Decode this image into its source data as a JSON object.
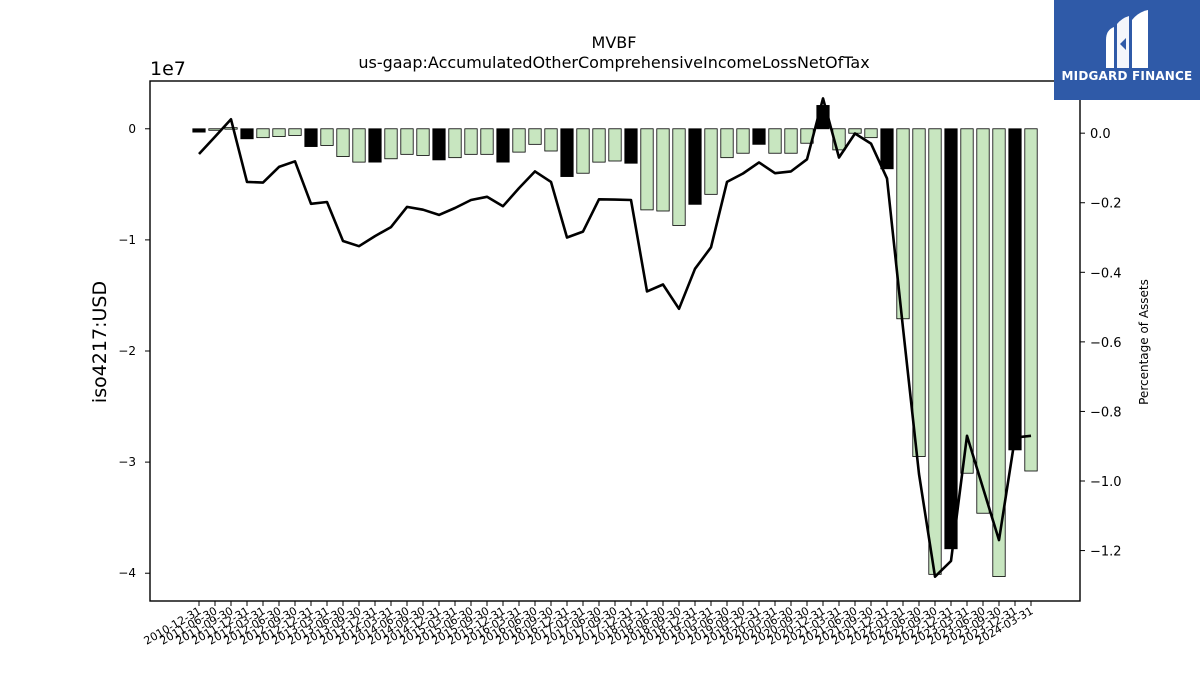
{
  "logo": {
    "text": "MIDGARD FINANCE",
    "background": "#2f5aa8"
  },
  "chart_data": {
    "type": "bar",
    "title": "MVBF",
    "subtitle": "us-gaap:AccumulatedOtherComprehensiveIncomeLossNetOfTax",
    "ylabel": "iso4217:USD",
    "y_offset_label": "1e7",
    "y2label": "Percentage of Assets",
    "ylim": [
      -42500000.0,
      4300000.0
    ],
    "y2lim": [
      -1.345,
      0.15
    ],
    "yticks": [
      0,
      -1,
      -2,
      -3,
      -4
    ],
    "y2ticks": [
      "0.0",
      "−0.2",
      "−0.4",
      "−0.6",
      "−0.8",
      "−1.0",
      "−1.2"
    ],
    "bar_colors": {
      "annual": "#000000",
      "quarter": "#c8e6c0"
    },
    "categories": [
      "2010-12-31",
      "2011-06-30",
      "2011-09-30",
      "2011-12-31",
      "2012-03-31",
      "2012-06-30",
      "2012-09-30",
      "2012-12-31",
      "2013-03-31",
      "2013-06-30",
      "2013-09-30",
      "2013-12-31",
      "2014-03-31",
      "2014-06-30",
      "2014-09-30",
      "2014-12-31",
      "2015-03-31",
      "2015-06-30",
      "2015-09-30",
      "2015-12-31",
      "2016-03-31",
      "2016-06-30",
      "2016-09-30",
      "2016-12-31",
      "2017-03-31",
      "2017-06-30",
      "2017-09-30",
      "2017-12-31",
      "2018-03-31",
      "2018-06-30",
      "2018-09-30",
      "2018-12-31",
      "2019-03-31",
      "2019-06-30",
      "2019-09-30",
      "2019-12-31",
      "2020-03-31",
      "2020-06-30",
      "2020-09-30",
      "2020-12-31",
      "2021-03-31",
      "2021-06-30",
      "2021-09-30",
      "2021-12-31",
      "2022-03-31",
      "2022-06-30",
      "2022-09-30",
      "2022-12-31",
      "2023-03-31",
      "2023-06-30",
      "2023-09-30",
      "2023-12-31",
      "2024-03-31"
    ],
    "bars": [
      -300000,
      -80000,
      100000,
      -900000,
      -800000,
      -700000,
      -600000,
      -1600000,
      -1500000,
      -2500000,
      -3000000,
      -3000000,
      -2700000,
      -2300000,
      -2400000,
      -2800000,
      -2600000,
      -2300000,
      -2300000,
      -3000000,
      -2100000,
      -1400000,
      -2000000,
      -4300000,
      -4000000,
      -3000000,
      -2900000,
      -3100000,
      -7300000,
      -7400000,
      -8700000,
      -6800000,
      -5900000,
      -2600000,
      -2200000,
      -1400000,
      -2200000,
      -2200000,
      -1300000,
      2100000,
      -1900000,
      -400000,
      -800000,
      -3600000,
      -17100000,
      -29500000,
      -40100000,
      -37800000,
      -31000000,
      -34600000,
      -40300000,
      -28900000,
      -30800000
    ],
    "bar_is_annual": [
      true,
      false,
      false,
      true,
      false,
      false,
      false,
      true,
      false,
      false,
      false,
      true,
      false,
      false,
      false,
      true,
      false,
      false,
      false,
      true,
      false,
      false,
      false,
      true,
      false,
      false,
      false,
      true,
      false,
      false,
      false,
      true,
      false,
      false,
      false,
      true,
      false,
      false,
      false,
      true,
      false,
      false,
      false,
      true,
      false,
      false,
      false,
      true,
      false,
      false,
      false,
      true,
      false
    ],
    "pct_assets": [
      -0.06,
      -0.01,
      0.04,
      -0.14,
      -0.142,
      -0.097,
      -0.081,
      -0.203,
      -0.198,
      -0.31,
      -0.325,
      -0.296,
      -0.27,
      -0.212,
      -0.22,
      -0.235,
      -0.215,
      -0.192,
      -0.183,
      -0.21,
      -0.158,
      -0.11,
      -0.14,
      -0.3,
      -0.283,
      -0.19,
      -0.191,
      -0.192,
      -0.455,
      -0.435,
      -0.505,
      -0.39,
      -0.328,
      -0.14,
      -0.116,
      -0.084,
      -0.115,
      -0.11,
      -0.075,
      0.1,
      -0.07,
      -0.001,
      -0.03,
      -0.13,
      -0.56,
      -0.98,
      -1.275,
      -1.23,
      -0.87,
      -1.02,
      -1.17,
      -0.875,
      -0.87
    ],
    "line_color": "#000000"
  }
}
